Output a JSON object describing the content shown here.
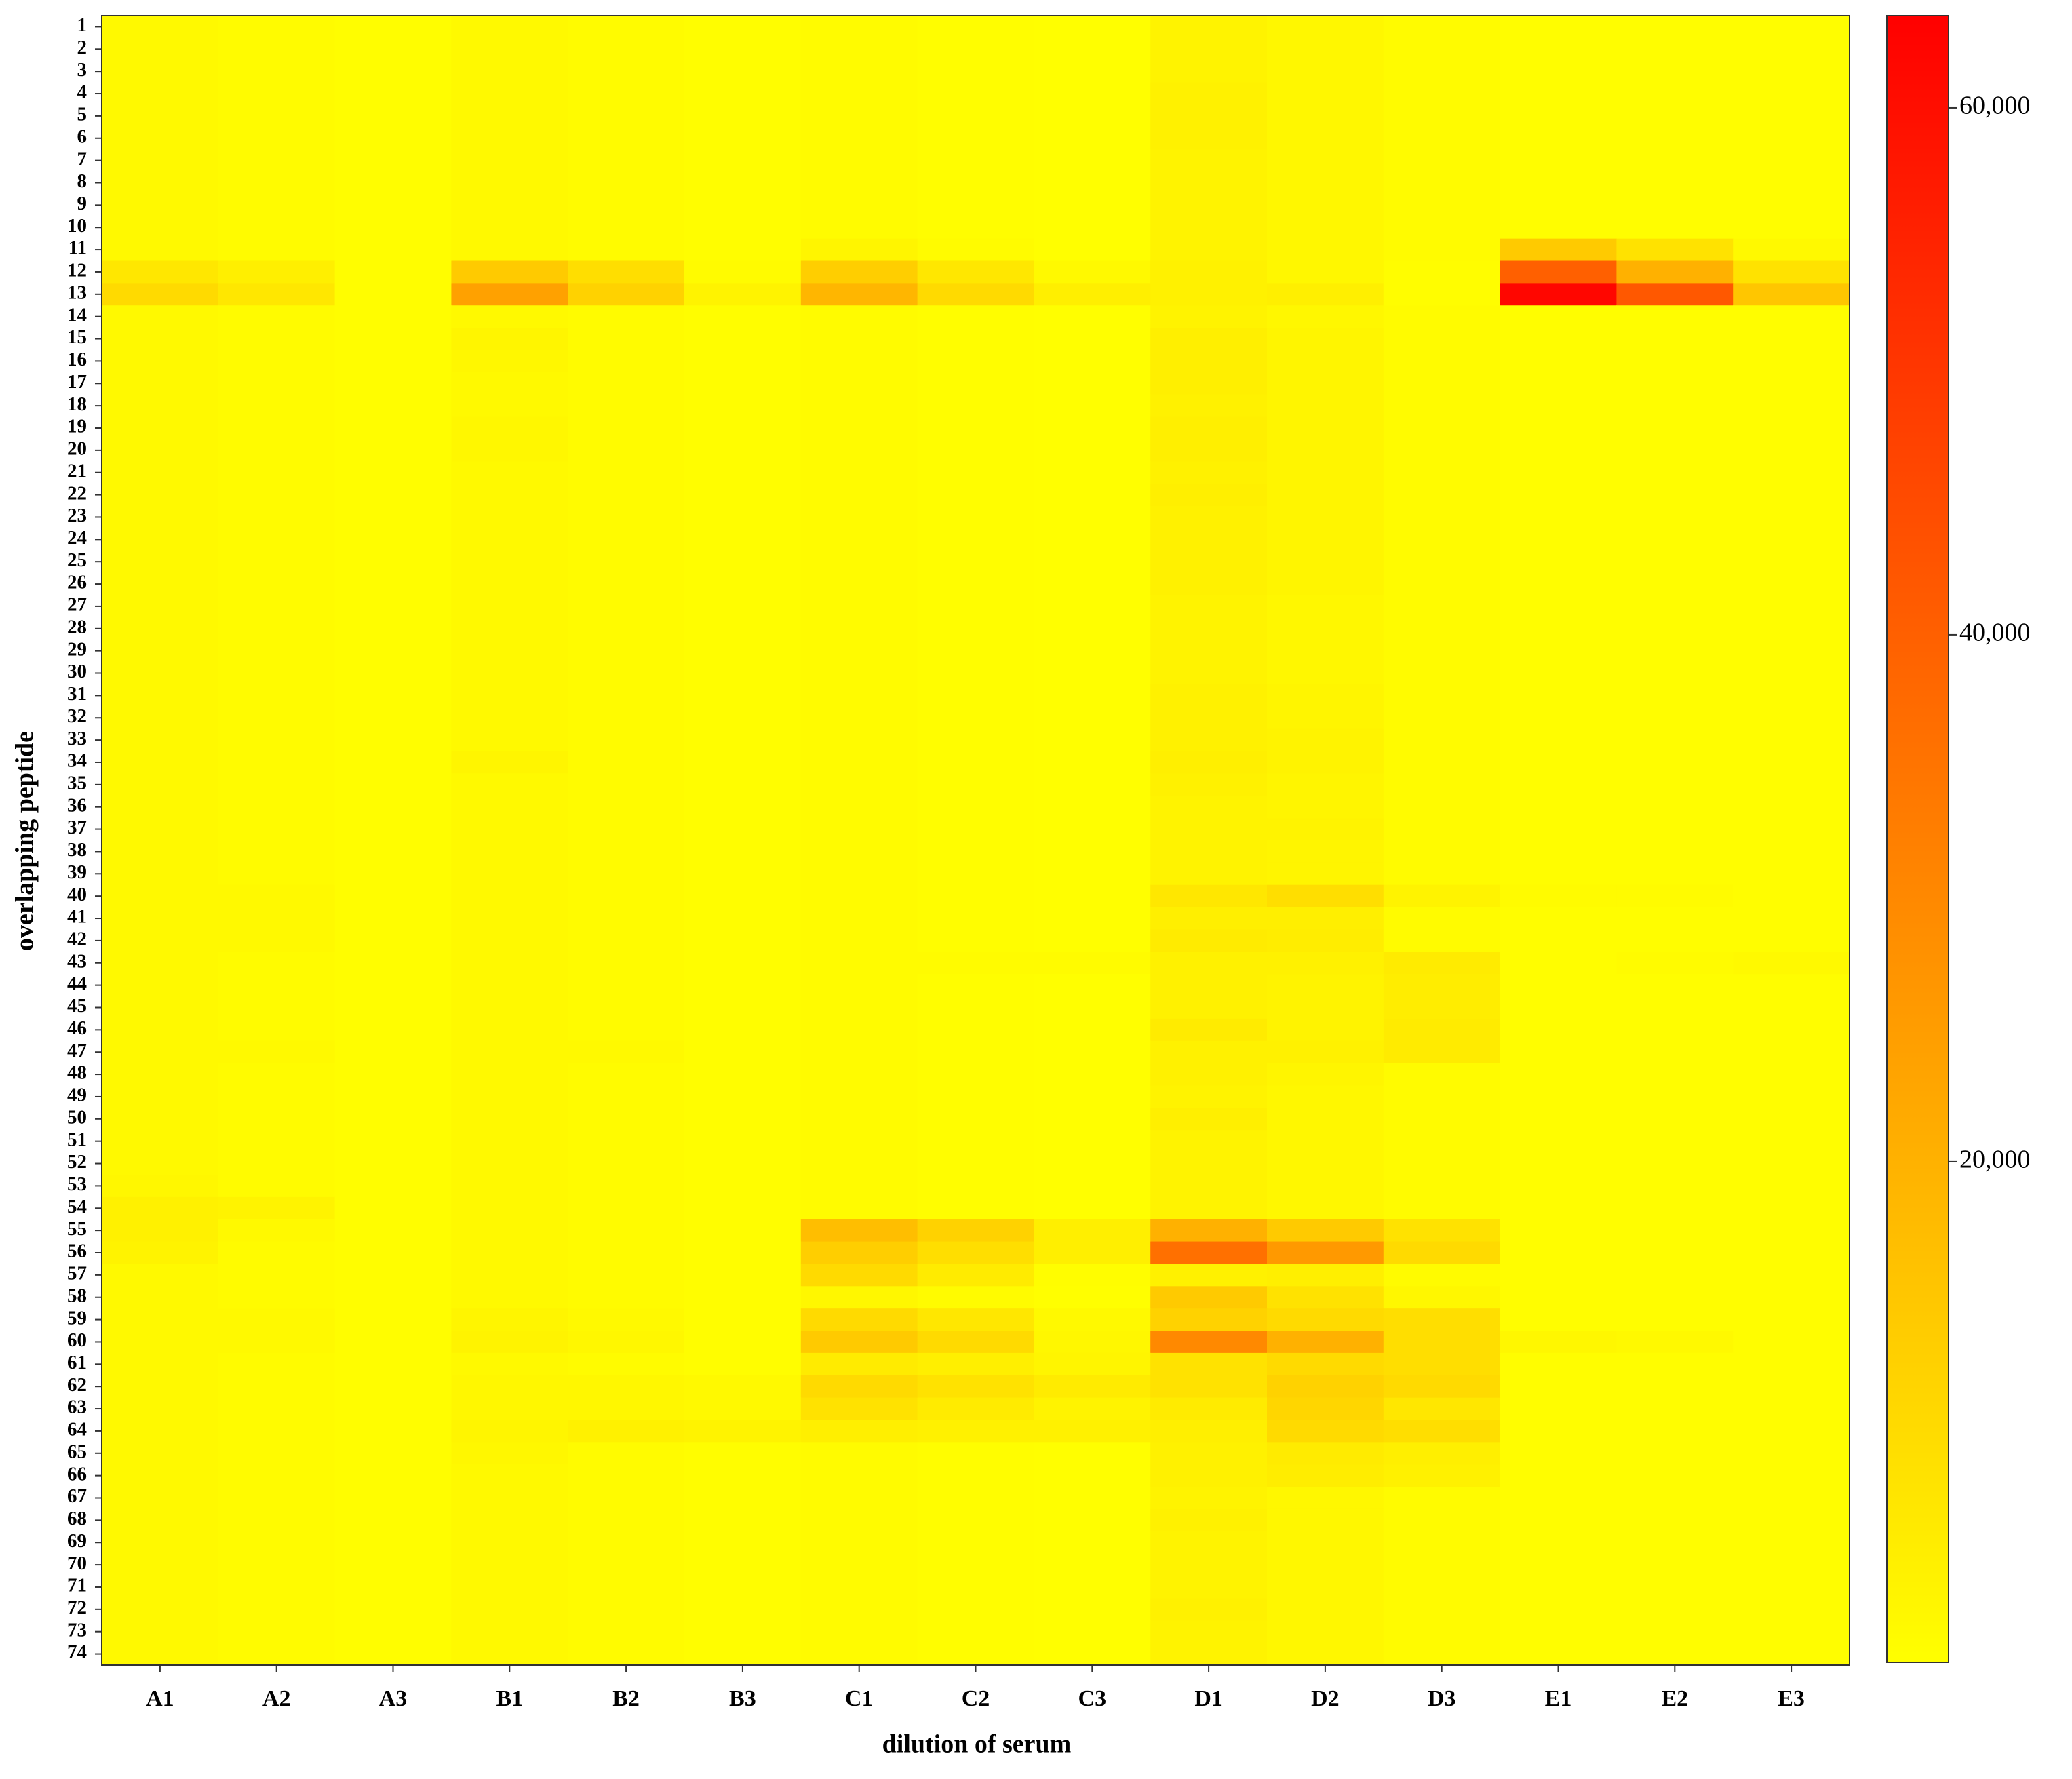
{
  "chart_data": {
    "type": "heatmap",
    "x_label": "dilution of serum",
    "y_label": "overlapping peptide",
    "x": [
      "A1",
      "A2",
      "A3",
      "B1",
      "B2",
      "B3",
      "C1",
      "C2",
      "C3",
      "D1",
      "D2",
      "D3",
      "E1",
      "E2",
      "E3"
    ],
    "y": [
      1,
      2,
      3,
      4,
      5,
      6,
      7,
      8,
      9,
      10,
      11,
      12,
      13,
      14,
      15,
      16,
      17,
      18,
      19,
      20,
      21,
      22,
      23,
      24,
      25,
      26,
      27,
      28,
      29,
      30,
      31,
      32,
      33,
      34,
      35,
      36,
      37,
      38,
      39,
      40,
      41,
      42,
      43,
      44,
      45,
      46,
      47,
      48,
      49,
      50,
      51,
      52,
      53,
      54,
      55,
      56,
      57,
      58,
      59,
      60,
      61,
      62,
      63,
      64,
      65,
      66,
      67,
      68,
      69,
      70,
      71,
      72,
      73,
      74
    ],
    "values": [
      [
        2500,
        2000,
        1500,
        2500,
        2000,
        1500,
        2000,
        1500,
        1200,
        4000,
        3000,
        2000,
        1500,
        1500,
        1500
      ],
      [
        2500,
        2000,
        1500,
        2500,
        2000,
        1500,
        2000,
        1500,
        1200,
        4000,
        3000,
        2000,
        1500,
        1500,
        1500
      ],
      [
        2500,
        2000,
        1500,
        2500,
        2000,
        1500,
        2000,
        1500,
        1200,
        4000,
        3000,
        2000,
        1500,
        1500,
        1500
      ],
      [
        2500,
        2000,
        1500,
        2500,
        2000,
        1500,
        2000,
        1500,
        1200,
        4500,
        3000,
        2000,
        1500,
        1500,
        1500
      ],
      [
        2500,
        2000,
        1500,
        2500,
        2000,
        1500,
        2000,
        1500,
        1200,
        4500,
        3000,
        2000,
        1500,
        1500,
        1500
      ],
      [
        2500,
        2000,
        1500,
        2500,
        2000,
        1500,
        2000,
        1500,
        1200,
        4500,
        3000,
        2000,
        1500,
        1500,
        1500
      ],
      [
        2500,
        2000,
        1500,
        2500,
        2000,
        1500,
        2000,
        1500,
        1200,
        4000,
        3000,
        2000,
        1500,
        1500,
        1500
      ],
      [
        2500,
        2000,
        1500,
        2500,
        2000,
        1500,
        2000,
        1500,
        1200,
        4000,
        3000,
        2000,
        1500,
        1500,
        1500
      ],
      [
        2500,
        2000,
        1500,
        2500,
        2000,
        1500,
        2000,
        1500,
        1200,
        4000,
        3000,
        2000,
        1500,
        1500,
        1500
      ],
      [
        2500,
        2000,
        1500,
        2500,
        2000,
        1500,
        2000,
        1500,
        1200,
        4000,
        3000,
        2000,
        1500,
        1500,
        1500
      ],
      [
        2500,
        2000,
        1500,
        2500,
        2000,
        1500,
        3500,
        2000,
        1200,
        4000,
        3000,
        2000,
        14000,
        8000,
        2500
      ],
      [
        7000,
        5000,
        1500,
        14000,
        9000,
        2000,
        13000,
        7000,
        2500,
        4500,
        3000,
        1500,
        40000,
        20000,
        8000
      ],
      [
        10000,
        7000,
        1500,
        24000,
        12000,
        4000,
        19000,
        10000,
        5000,
        4500,
        5000,
        1500,
        62000,
        42000,
        15000
      ],
      [
        2500,
        2000,
        1500,
        2500,
        2000,
        1500,
        2000,
        1500,
        1200,
        4000,
        3000,
        2000,
        1500,
        1500,
        1500
      ],
      [
        2500,
        2000,
        1500,
        3500,
        2000,
        1500,
        2000,
        1500,
        1200,
        5000,
        3500,
        2000,
        1500,
        1500,
        1500
      ],
      [
        2500,
        2000,
        1500,
        3000,
        2000,
        1500,
        2000,
        1500,
        1200,
        5000,
        3500,
        2000,
        1500,
        1500,
        1500
      ],
      [
        2500,
        2000,
        1500,
        2500,
        2000,
        1500,
        2000,
        1500,
        1200,
        5000,
        3500,
        2000,
        1500,
        1500,
        1500
      ],
      [
        2500,
        2000,
        1500,
        2500,
        2000,
        1500,
        2000,
        1500,
        1200,
        4500,
        3500,
        2000,
        1500,
        1500,
        1500
      ],
      [
        2500,
        2000,
        1500,
        3000,
        2000,
        1500,
        2000,
        1500,
        1200,
        5000,
        3500,
        2000,
        1500,
        1500,
        1500
      ],
      [
        2500,
        2000,
        1500,
        3000,
        2000,
        1500,
        2000,
        1500,
        1200,
        5000,
        3500,
        2000,
        1500,
        1500,
        1500
      ],
      [
        2500,
        2000,
        1500,
        2500,
        2000,
        1500,
        2000,
        1500,
        1200,
        4500,
        3500,
        2000,
        1500,
        1500,
        1500
      ],
      [
        2500,
        2000,
        1500,
        2500,
        2000,
        1500,
        2000,
        1500,
        1200,
        5000,
        3500,
        2000,
        1500,
        1500,
        1500
      ],
      [
        2500,
        2000,
        1500,
        2500,
        2000,
        1500,
        2000,
        1500,
        1200,
        4500,
        3500,
        2000,
        1500,
        1500,
        1500
      ],
      [
        2500,
        2000,
        1500,
        2500,
        2000,
        1500,
        2000,
        1500,
        1200,
        4500,
        3500,
        2000,
        1500,
        1500,
        1500
      ],
      [
        2500,
        2000,
        1500,
        2500,
        2000,
        1500,
        2000,
        1500,
        1200,
        4500,
        3500,
        2000,
        1500,
        1500,
        1500
      ],
      [
        2500,
        2000,
        1500,
        2500,
        2000,
        1500,
        2000,
        1500,
        1200,
        4500,
        3500,
        2000,
        1500,
        1500,
        1500
      ],
      [
        2500,
        2000,
        1500,
        2500,
        2000,
        1500,
        2000,
        1500,
        1200,
        4000,
        3000,
        2000,
        1500,
        1500,
        1500
      ],
      [
        2500,
        2000,
        1500,
        2500,
        2000,
        1500,
        2000,
        1500,
        1200,
        4000,
        3000,
        2000,
        1500,
        1500,
        1500
      ],
      [
        2500,
        2000,
        1500,
        2500,
        2000,
        1500,
        2000,
        1500,
        1200,
        4000,
        3000,
        2000,
        1500,
        1500,
        1500
      ],
      [
        2500,
        2000,
        1500,
        2500,
        2000,
        1500,
        2000,
        1500,
        1200,
        4000,
        3000,
        2000,
        1500,
        1500,
        1500
      ],
      [
        2500,
        2000,
        1500,
        2500,
        2000,
        1500,
        2000,
        1500,
        1200,
        4500,
        3500,
        2000,
        1500,
        1500,
        1500
      ],
      [
        2500,
        2000,
        1500,
        2500,
        2000,
        1500,
        2000,
        1500,
        1200,
        4500,
        3500,
        2000,
        1500,
        1500,
        1500
      ],
      [
        2500,
        2000,
        1500,
        2500,
        2000,
        1500,
        2000,
        1500,
        1200,
        4500,
        4000,
        2000,
        1500,
        1500,
        1500
      ],
      [
        2500,
        2000,
        1500,
        3500,
        2000,
        1500,
        2000,
        1500,
        1200,
        5000,
        4000,
        2000,
        1500,
        1500,
        1500
      ],
      [
        2500,
        2000,
        1500,
        2500,
        2000,
        1500,
        2000,
        1500,
        1200,
        4500,
        3500,
        2000,
        1500,
        1500,
        1500
      ],
      [
        2500,
        2000,
        1500,
        2500,
        2000,
        1500,
        2000,
        1500,
        1200,
        4000,
        3500,
        2000,
        1500,
        1500,
        1500
      ],
      [
        2500,
        2000,
        1500,
        2500,
        2000,
        1500,
        2000,
        1500,
        1200,
        4000,
        4000,
        2000,
        1500,
        1500,
        1500
      ],
      [
        2500,
        2000,
        1500,
        2500,
        2000,
        1500,
        2000,
        1500,
        1200,
        4000,
        3500,
        2000,
        1500,
        1500,
        1500
      ],
      [
        2500,
        2000,
        1500,
        2500,
        2000,
        1500,
        2000,
        1500,
        1200,
        4000,
        3500,
        2000,
        1500,
        1500,
        1500
      ],
      [
        2500,
        2500,
        1500,
        2500,
        2000,
        1500,
        2000,
        1500,
        1200,
        7000,
        9000,
        4000,
        2000,
        2000,
        1500
      ],
      [
        2500,
        2500,
        1500,
        2500,
        2000,
        1500,
        2000,
        1500,
        1200,
        5000,
        5000,
        2000,
        1500,
        1500,
        1500
      ],
      [
        2500,
        2500,
        1500,
        2500,
        2000,
        1500,
        2000,
        1500,
        1200,
        6000,
        5500,
        2000,
        1500,
        1500,
        1500
      ],
      [
        2500,
        2000,
        1500,
        2500,
        2000,
        1500,
        2000,
        2000,
        2000,
        4500,
        4500,
        6000,
        1500,
        2000,
        2500
      ],
      [
        2500,
        2000,
        1500,
        2500,
        2000,
        1500,
        2000,
        1500,
        1200,
        4500,
        4000,
        5500,
        1500,
        1500,
        1500
      ],
      [
        2500,
        2000,
        1500,
        2500,
        2000,
        1500,
        2000,
        1500,
        1200,
        4500,
        4000,
        5500,
        1500,
        1500,
        1500
      ],
      [
        2500,
        2000,
        1500,
        2500,
        2000,
        1500,
        2000,
        1500,
        1200,
        6000,
        4000,
        6000,
        1500,
        1500,
        1500
      ],
      [
        2500,
        2500,
        1500,
        2500,
        2500,
        1500,
        2000,
        1500,
        1200,
        4500,
        4500,
        6000,
        1500,
        1500,
        1500
      ],
      [
        2500,
        2000,
        1500,
        2500,
        2000,
        1500,
        2000,
        1500,
        1200,
        4500,
        3500,
        2000,
        1500,
        1500,
        1500
      ],
      [
        2500,
        2000,
        1500,
        2500,
        2000,
        1500,
        2000,
        1500,
        1200,
        4000,
        3000,
        2000,
        1500,
        1500,
        1500
      ],
      [
        2500,
        2000,
        1500,
        2500,
        2000,
        1500,
        2000,
        1500,
        1200,
        5000,
        3000,
        2000,
        1500,
        1500,
        1500
      ],
      [
        2500,
        2000,
        1500,
        2500,
        2000,
        1500,
        2000,
        1500,
        1200,
        4000,
        3000,
        2000,
        1500,
        1500,
        1500
      ],
      [
        2500,
        2000,
        1500,
        2500,
        2000,
        1500,
        2000,
        1500,
        1200,
        4000,
        3000,
        2000,
        1500,
        1500,
        1500
      ],
      [
        3000,
        2000,
        1500,
        2500,
        2000,
        1500,
        2000,
        1500,
        1200,
        4000,
        3000,
        2000,
        1500,
        1500,
        1500
      ],
      [
        4500,
        4000,
        1500,
        2500,
        2000,
        1500,
        2000,
        1500,
        1200,
        4000,
        3000,
        2000,
        1500,
        1500,
        1500
      ],
      [
        4500,
        2500,
        1500,
        2500,
        2000,
        1500,
        17000,
        12000,
        5000,
        20000,
        14000,
        8000,
        1500,
        1500,
        1500
      ],
      [
        4000,
        2000,
        1500,
        2500,
        2000,
        1500,
        13000,
        9000,
        5000,
        36000,
        26000,
        10000,
        1500,
        1500,
        1500
      ],
      [
        2500,
        2000,
        1500,
        2500,
        2000,
        1500,
        10000,
        6000,
        1500,
        4500,
        5000,
        2000,
        1500,
        1500,
        1500
      ],
      [
        2500,
        2000,
        1500,
        2500,
        2000,
        1500,
        3000,
        2000,
        1200,
        14000,
        8000,
        3000,
        1500,
        1500,
        1500
      ],
      [
        2500,
        2500,
        1500,
        3500,
        2500,
        1500,
        10000,
        7000,
        2500,
        12000,
        10000,
        9000,
        1500,
        1500,
        1500
      ],
      [
        2500,
        2500,
        1500,
        4000,
        3000,
        1500,
        14000,
        10000,
        3000,
        30000,
        20000,
        9000,
        3000,
        2500,
        1500
      ],
      [
        2500,
        2000,
        1500,
        2500,
        2000,
        1500,
        6000,
        5000,
        3500,
        8000,
        10000,
        9000,
        1500,
        1500,
        1500
      ],
      [
        2500,
        2000,
        1500,
        3000,
        3000,
        2500,
        10000,
        8000,
        6000,
        8000,
        12000,
        10000,
        1500,
        1500,
        1500
      ],
      [
        2500,
        2000,
        1500,
        3000,
        3000,
        2500,
        8000,
        6000,
        4000,
        6000,
        11000,
        7000,
        1500,
        1500,
        1500
      ],
      [
        2500,
        2000,
        1500,
        3500,
        4500,
        4000,
        5000,
        4500,
        4500,
        5000,
        10000,
        9000,
        1500,
        1500,
        1500
      ],
      [
        2500,
        2000,
        1500,
        3000,
        2000,
        1500,
        2000,
        1500,
        1200,
        4500,
        6000,
        5000,
        1500,
        1500,
        1500
      ],
      [
        2500,
        2000,
        1500,
        2500,
        2000,
        1500,
        2000,
        1500,
        1200,
        4500,
        5500,
        4500,
        1500,
        1500,
        1500
      ],
      [
        2500,
        2000,
        1500,
        2500,
        2000,
        1500,
        2000,
        1500,
        1200,
        4000,
        3000,
        2000,
        1500,
        1500,
        1500
      ],
      [
        2500,
        2000,
        1500,
        2500,
        2000,
        1500,
        2000,
        1500,
        1200,
        4500,
        3000,
        2000,
        1500,
        1500,
        1500
      ],
      [
        2500,
        2000,
        1500,
        2500,
        2000,
        1500,
        2000,
        1500,
        1200,
        4000,
        3000,
        2000,
        1500,
        1500,
        1500
      ],
      [
        2500,
        2000,
        1500,
        2500,
        2000,
        1500,
        2000,
        1500,
        1200,
        4000,
        3000,
        2000,
        1500,
        1500,
        1500
      ],
      [
        2500,
        2000,
        1500,
        2500,
        2000,
        1500,
        2000,
        1500,
        1200,
        4000,
        3000,
        2000,
        1500,
        1500,
        1500
      ],
      [
        2500,
        2000,
        1500,
        2500,
        2000,
        1500,
        2000,
        1500,
        1200,
        4500,
        3000,
        2000,
        1500,
        1500,
        1500
      ],
      [
        2500,
        2000,
        1500,
        2500,
        2000,
        1500,
        2000,
        1500,
        1200,
        4000,
        3000,
        2000,
        1500,
        1500,
        1500
      ],
      [
        2500,
        2000,
        1500,
        2500,
        2000,
        1500,
        2000,
        1500,
        1200,
        4000,
        3000,
        2000,
        1500,
        1500,
        1500
      ]
    ],
    "zlim": [
      1000,
      63500
    ],
    "zticks": [
      {
        "value": 20000,
        "label": "20,000"
      },
      {
        "value": 40000,
        "label": "40,000"
      },
      {
        "value": 60000,
        "label": "60,000"
      }
    ],
    "colors": [
      "#ffff00",
      "#ff0000"
    ]
  }
}
